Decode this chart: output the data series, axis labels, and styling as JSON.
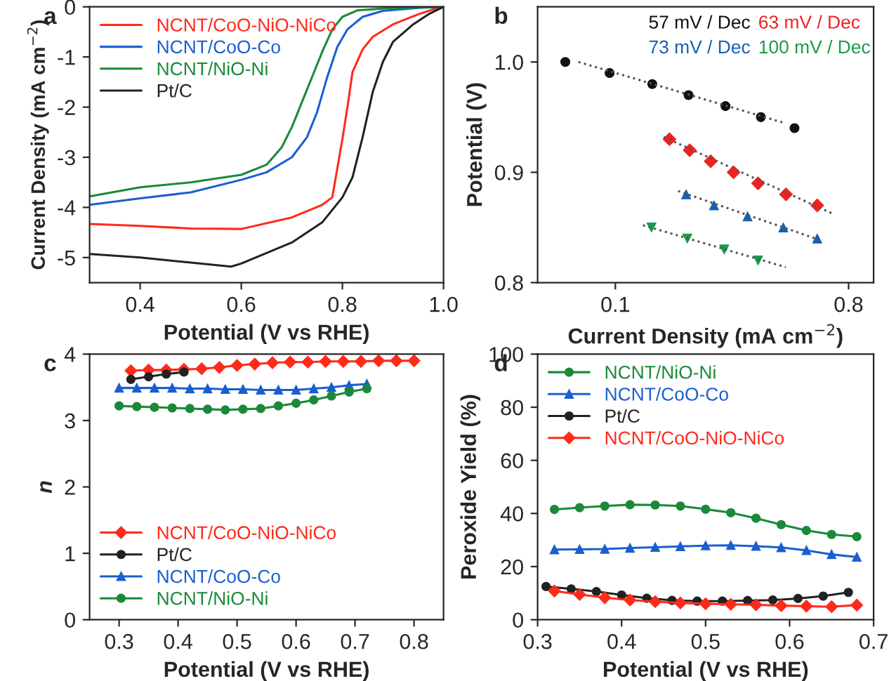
{
  "chart_data": [
    {
      "type": "line",
      "title": "a",
      "xlabel": "Potential (V vs RHE)",
      "ylabel": "Current Density (mA cm$^{−2}$)",
      "xlim": [
        0.3,
        1.0
      ],
      "ylim": [
        -5.5,
        0
      ],
      "xticks": [
        0.4,
        0.6,
        0.8,
        {
          "value": 1.0,
          "label": "1.0"
        }
      ],
      "yticks": [
        -5,
        -4,
        -3,
        -2,
        -1,
        0
      ],
      "legend": "top left",
      "series": [
        {
          "name": "NCNT/CoO-NiO-NiCo",
          "color": "#ff2a1a",
          "x": [
            0.3,
            0.4,
            0.5,
            0.6,
            0.7,
            0.76,
            0.78,
            0.8,
            0.81,
            0.82,
            0.84,
            0.86,
            0.9,
            0.95,
            0.98,
            1.0
          ],
          "values": [
            -4.33,
            -4.37,
            -4.42,
            -4.43,
            -4.2,
            -3.95,
            -3.8,
            -2.64,
            -2.0,
            -1.3,
            -0.85,
            -0.6,
            -0.35,
            -0.15,
            -0.05,
            0
          ]
        },
        {
          "name": "NCNT/CoO-Co",
          "color": "#1a5fd0",
          "x": [
            0.3,
            0.4,
            0.5,
            0.6,
            0.65,
            0.7,
            0.73,
            0.75,
            0.77,
            0.79,
            0.81,
            0.84,
            0.88,
            0.95,
            1.0
          ],
          "values": [
            -3.95,
            -3.82,
            -3.7,
            -3.45,
            -3.3,
            -3.0,
            -2.6,
            -2.1,
            -1.4,
            -0.8,
            -0.45,
            -0.2,
            -0.08,
            -0.02,
            0
          ]
        },
        {
          "name": "NCNT/NiO-Ni",
          "color": "#1a8a3a",
          "x": [
            0.3,
            0.4,
            0.5,
            0.6,
            0.65,
            0.68,
            0.7,
            0.72,
            0.74,
            0.76,
            0.78,
            0.8,
            0.83,
            0.9,
            1.0
          ],
          "values": [
            -3.78,
            -3.6,
            -3.5,
            -3.35,
            -3.15,
            -2.8,
            -2.4,
            -1.9,
            -1.4,
            -0.9,
            -0.45,
            -0.2,
            -0.07,
            -0.02,
            0
          ]
        },
        {
          "name": "Pt/C",
          "color": "#222222",
          "x": [
            0.3,
            0.4,
            0.5,
            0.58,
            0.6,
            0.7,
            0.76,
            0.8,
            0.82,
            0.84,
            0.86,
            0.88,
            0.9,
            0.94,
            0.97,
            1.0
          ],
          "values": [
            -4.93,
            -5.0,
            -5.1,
            -5.18,
            -5.12,
            -4.7,
            -4.3,
            -3.8,
            -3.4,
            -2.6,
            -1.7,
            -1.1,
            -0.7,
            -0.35,
            -0.15,
            0
          ]
        }
      ]
    },
    {
      "type": "scatter",
      "title": "b",
      "xlabel": "Current Density (mA cm$^{−2}$)",
      "ylabel": "Potential (V)",
      "log": "x",
      "xlim": [
        0.05,
        1.0
      ],
      "ylim": [
        0.8,
        1.05
      ],
      "xticks": [
        0.1,
        0.8
      ],
      "yticks": [
        0.8,
        0.9,
        {
          "value": 1.0,
          "label": "1.0"
        }
      ],
      "annotations": [
        "57 mV / Dec",
        "63 mV / Dec",
        "73 mV / Dec",
        "100 mV / Dec"
      ],
      "series": [
        {
          "color": "#111111",
          "marker": "circle",
          "x": [
            0.064,
            0.095,
            0.139,
            0.192,
            0.267,
            0.366,
            0.494
          ],
          "values": [
            1.0,
            0.99,
            0.98,
            0.97,
            0.96,
            0.95,
            0.94
          ]
        },
        {
          "color": "#ee2222",
          "marker": "diamond",
          "x": [
            0.162,
            0.194,
            0.234,
            0.287,
            0.357,
            0.458,
            0.605
          ],
          "values": [
            0.93,
            0.92,
            0.91,
            0.9,
            0.89,
            0.88,
            0.87
          ]
        },
        {
          "color": "#1a5fb0",
          "marker": "triangle",
          "x": [
            0.188,
            0.241,
            0.325,
            0.447,
            0.605
          ],
          "values": [
            0.88,
            0.87,
            0.86,
            0.85,
            0.84
          ]
        },
        {
          "color": "#1a9a4a",
          "marker": "triangle_down",
          "x": [
            0.138,
            0.19,
            0.264,
            0.357
          ],
          "values": [
            0.85,
            0.84,
            0.83,
            0.82
          ]
        },
        {
          "type": "line",
          "line_style": "dotted",
          "color": "#555555",
          "x": [
            0.072,
            0.447
          ],
          "values": [
            1.0,
            0.945
          ]
        },
        {
          "type": "line",
          "line_style": "dotted",
          "color": "#555555",
          "x": [
            0.154,
            0.702
          ],
          "values": [
            0.932,
            0.862
          ]
        },
        {
          "type": "line",
          "line_style": "dotted",
          "color": "#555555",
          "x": [
            0.175,
            0.63
          ],
          "values": [
            0.883,
            0.838
          ]
        },
        {
          "type": "line",
          "line_style": "dotted",
          "color": "#555555",
          "x": [
            0.128,
            0.457
          ],
          "values": [
            0.852,
            0.814
          ]
        }
      ]
    },
    {
      "type": "line",
      "title": "c",
      "xlabel": "Potential (V vs RHE)",
      "ylabel": "n",
      "xlim": [
        0.25,
        0.85
      ],
      "ylim": [
        0,
        4
      ],
      "xticks": [
        0.3,
        0.4,
        0.5,
        0.6,
        0.7,
        0.8
      ],
      "yticks": [
        0,
        1,
        2,
        3,
        4
      ],
      "legend": "bottom left",
      "series": [
        {
          "name": "NCNT/CoO-NiO-NiCo",
          "color": "#ff2a1a",
          "marker": "diamond",
          "x": [
            0.32,
            0.35,
            0.38,
            0.41,
            0.44,
            0.47,
            0.5,
            0.53,
            0.56,
            0.59,
            0.62,
            0.65,
            0.68,
            0.71,
            0.74,
            0.77,
            0.8
          ],
          "values": [
            3.75,
            3.76,
            3.76,
            3.77,
            3.78,
            3.8,
            3.83,
            3.85,
            3.87,
            3.88,
            3.88,
            3.89,
            3.89,
            3.89,
            3.9,
            3.9,
            3.9
          ]
        },
        {
          "name": "Pt/C",
          "color": "#222222",
          "marker": "circle",
          "x": [
            0.32,
            0.35,
            0.38,
            0.41
          ],
          "values": [
            3.62,
            3.66,
            3.7,
            3.73
          ]
        },
        {
          "name": "NCNT/CoO-Co",
          "color": "#1a5fd0",
          "marker": "triangle",
          "x": [
            0.3,
            0.33,
            0.36,
            0.39,
            0.42,
            0.45,
            0.48,
            0.51,
            0.54,
            0.57,
            0.6,
            0.63,
            0.66,
            0.69,
            0.72
          ],
          "values": [
            3.49,
            3.49,
            3.49,
            3.49,
            3.48,
            3.48,
            3.47,
            3.47,
            3.46,
            3.46,
            3.46,
            3.48,
            3.5,
            3.53,
            3.55
          ]
        },
        {
          "name": "NCNT/NiO-Ni",
          "color": "#1a8a3a",
          "marker": "circle",
          "x": [
            0.3,
            0.33,
            0.36,
            0.39,
            0.42,
            0.45,
            0.48,
            0.51,
            0.54,
            0.57,
            0.6,
            0.63,
            0.66,
            0.69,
            0.72
          ],
          "values": [
            3.22,
            3.21,
            3.2,
            3.19,
            3.18,
            3.17,
            3.16,
            3.17,
            3.18,
            3.22,
            3.26,
            3.31,
            3.37,
            3.43,
            3.48
          ]
        }
      ]
    },
    {
      "type": "line",
      "title": "d",
      "xlabel": "Potential (V vs RHE)",
      "ylabel": "Peroxide Yield (%)",
      "xlim": [
        0.3,
        0.7
      ],
      "ylim": [
        0,
        100
      ],
      "xticks": [
        0.3,
        0.4,
        0.5,
        0.6,
        0.7
      ],
      "yticks": [
        0,
        20,
        40,
        60,
        80,
        100
      ],
      "legend": "top left",
      "series": [
        {
          "name": "NCNT/NiO-Ni",
          "color": "#1a8a3a",
          "marker": "circle",
          "x": [
            0.32,
            0.35,
            0.38,
            0.41,
            0.44,
            0.47,
            0.5,
            0.53,
            0.56,
            0.59,
            0.62,
            0.65,
            0.68
          ],
          "values": [
            41.5,
            42.2,
            42.8,
            43.3,
            43.2,
            42.8,
            41.6,
            40.3,
            38.2,
            35.8,
            33.6,
            32.1,
            31.3
          ]
        },
        {
          "name": "NCNT/CoO-Co",
          "color": "#1a5fd0",
          "marker": "triangle",
          "x": [
            0.32,
            0.35,
            0.38,
            0.41,
            0.44,
            0.47,
            0.5,
            0.53,
            0.56,
            0.59,
            0.62,
            0.65,
            0.68
          ],
          "values": [
            26.4,
            26.5,
            26.6,
            27.0,
            27.3,
            27.6,
            27.9,
            28.0,
            27.7,
            27.2,
            26.1,
            24.6,
            23.6
          ]
        },
        {
          "name": "Pt/C",
          "color": "#222222",
          "marker": "circle",
          "x": [
            0.31,
            0.34,
            0.37,
            0.4,
            0.43,
            0.46,
            0.49,
            0.52,
            0.55,
            0.58,
            0.61,
            0.64,
            0.67
          ],
          "values": [
            12.5,
            11.6,
            10.6,
            9.3,
            8.1,
            7.3,
            7.0,
            7.0,
            7.2,
            7.4,
            8.0,
            8.9,
            10.3
          ]
        },
        {
          "name": "NCNT/CoO-NiO-NiCo",
          "color": "#ff2a1a",
          "marker": "diamond",
          "x": [
            0.32,
            0.35,
            0.38,
            0.41,
            0.44,
            0.47,
            0.5,
            0.53,
            0.56,
            0.59,
            0.62,
            0.65,
            0.68
          ],
          "values": [
            10.8,
            9.5,
            8.3,
            7.4,
            6.8,
            6.3,
            6.0,
            5.8,
            5.6,
            5.3,
            5.1,
            4.9,
            5.5
          ]
        }
      ]
    }
  ]
}
